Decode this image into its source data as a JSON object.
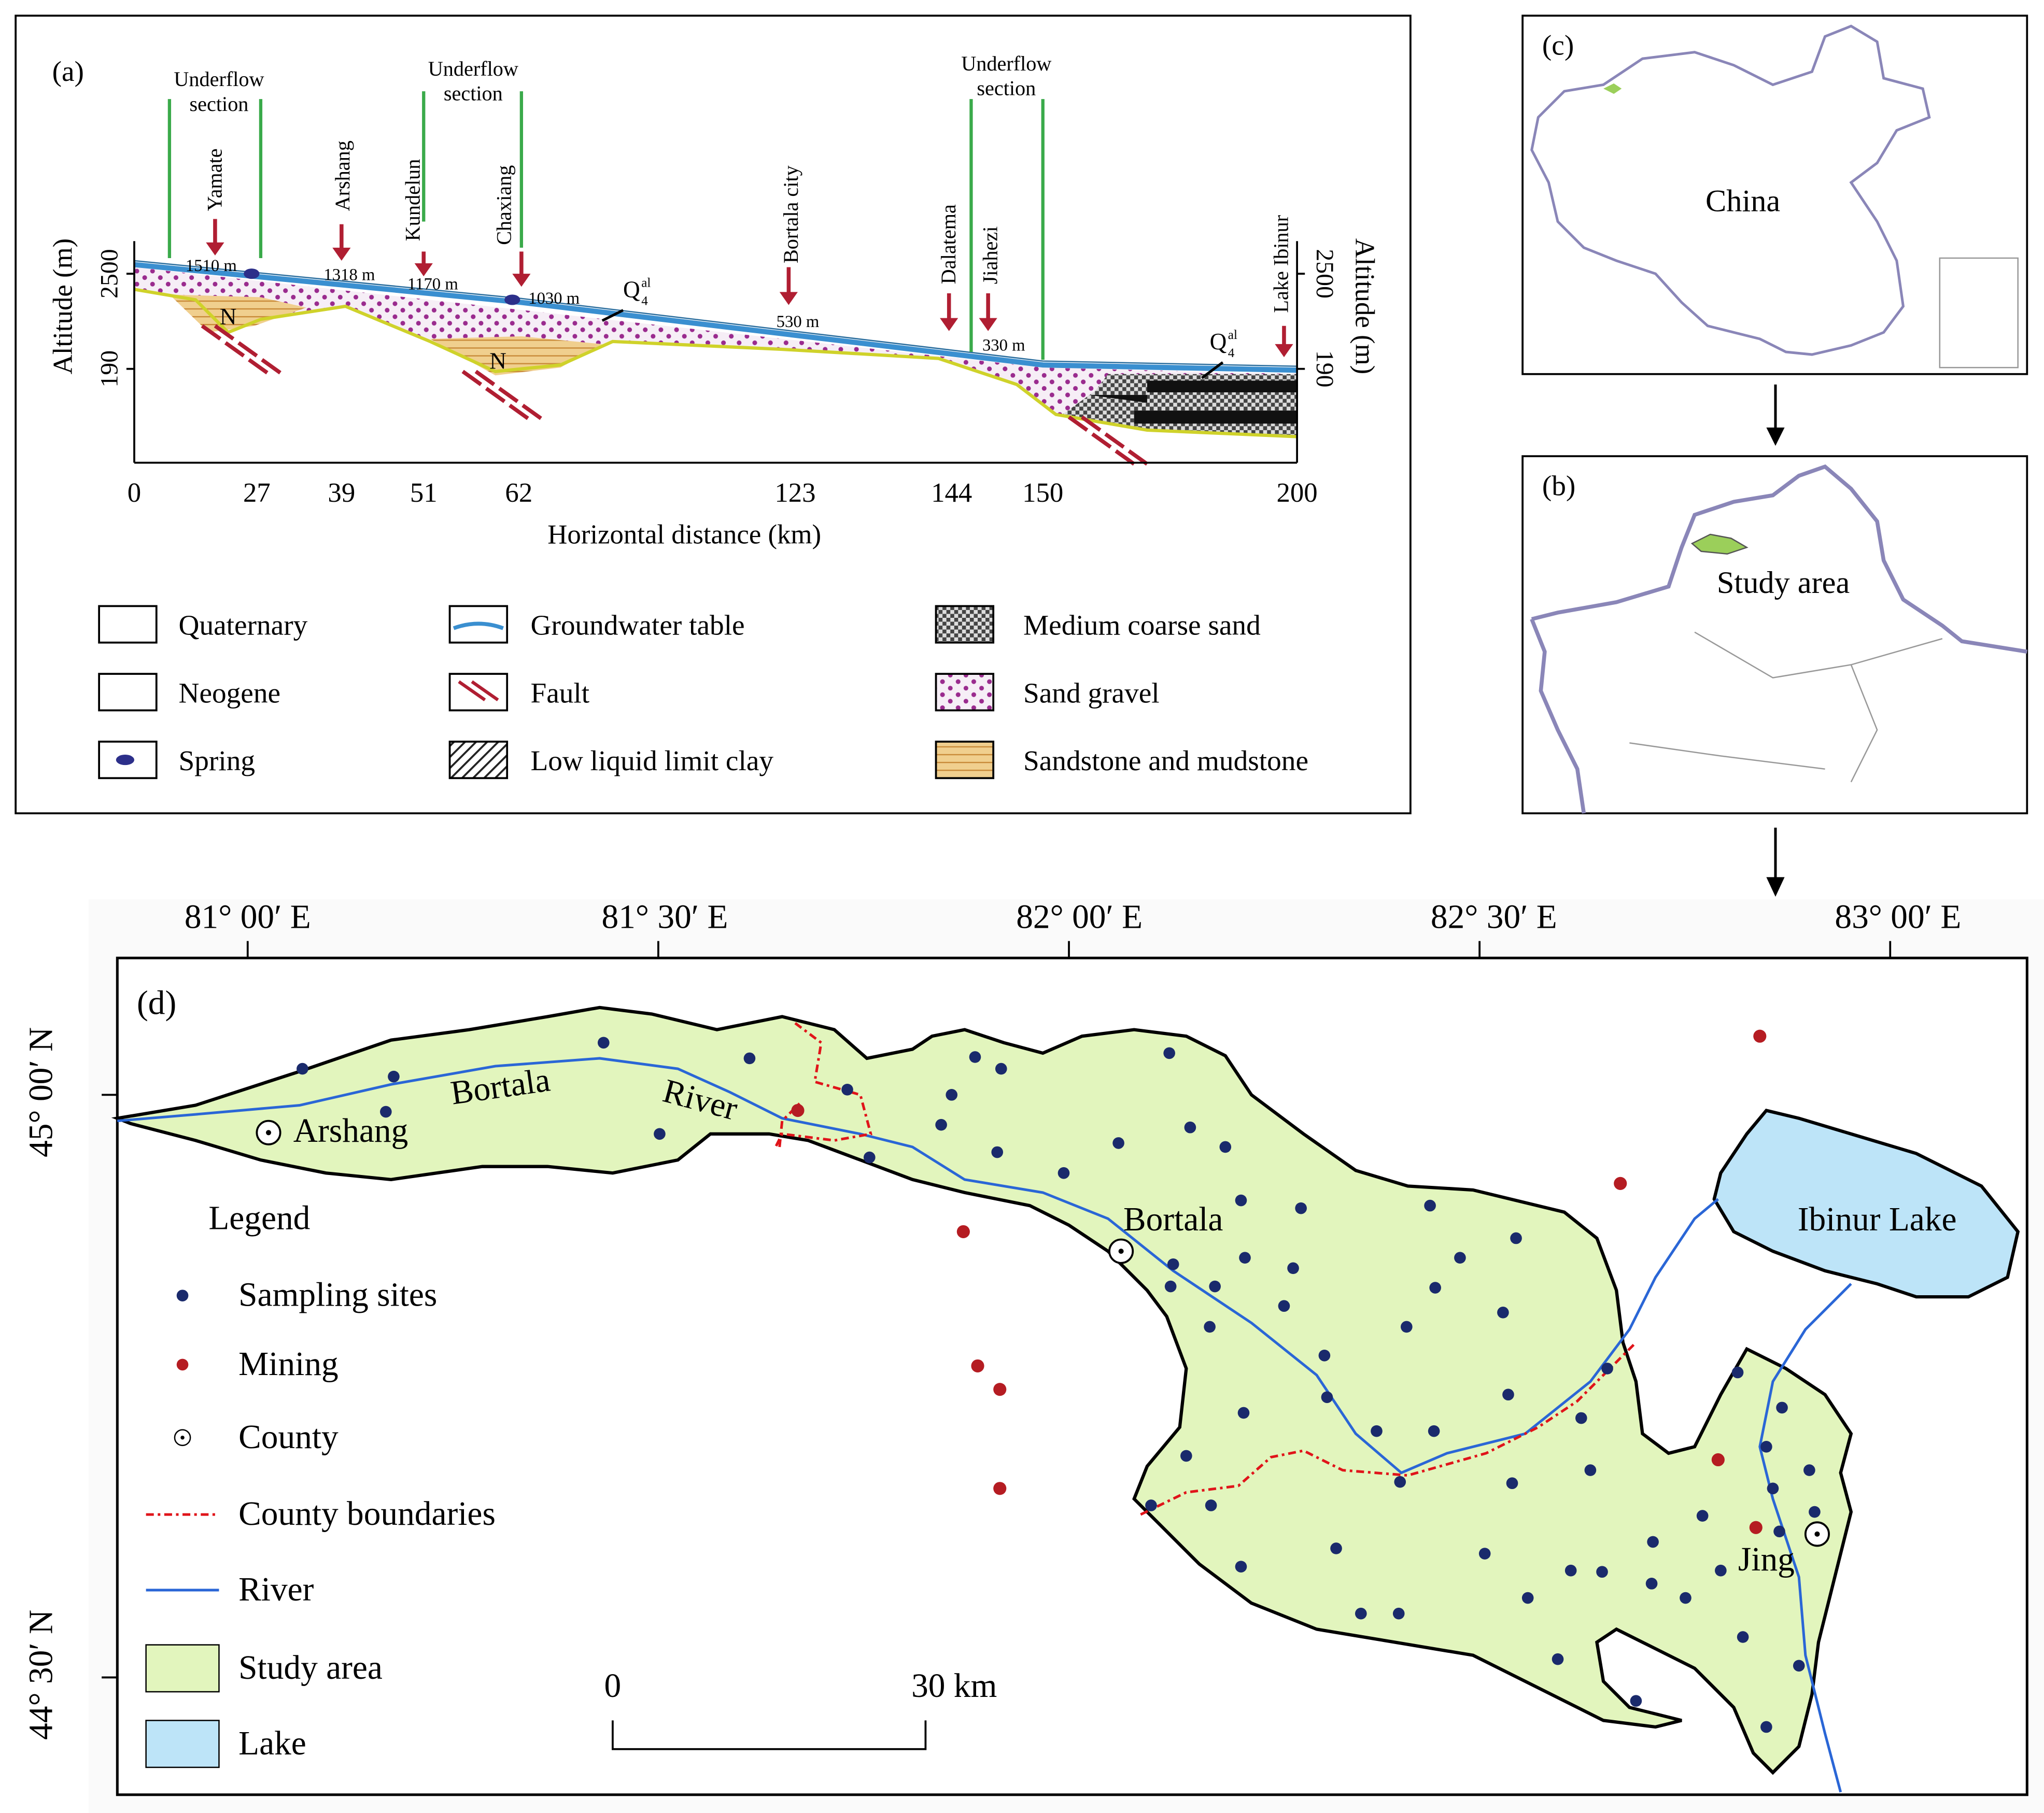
{
  "panel_a": {
    "label": "(a)",
    "sections": [
      [
        "Underflow",
        "section"
      ],
      [
        "Underflow",
        "section"
      ],
      [
        "Underflow",
        "section"
      ]
    ],
    "places": [
      "Yamate",
      "Arshang",
      "Kundelun",
      "Chaxiang",
      "Bortala city",
      "Dalatema",
      "Jiahezi",
      "Lake Ibinur"
    ],
    "elevations": [
      "1510 m",
      "1318 m",
      "1170 m",
      "1030 m",
      "530 m",
      "330 m"
    ],
    "quaternary_symbol": {
      "base": "Q",
      "sub": "4",
      "sup": "al"
    },
    "neogene_symbol": "N",
    "y_axis_label": "Altitude (m)",
    "y_ticks": [
      "2500",
      "190"
    ],
    "x_ticks": [
      "0",
      "27",
      "39",
      "51",
      "62",
      "123",
      "144",
      "150",
      "200"
    ],
    "x_axis_label": "Horizontal distance (km)",
    "legend": [
      "Quaternary",
      "Neogene",
      "Spring",
      "Groundwater table",
      "Fault",
      "Low liquid limit clay",
      "Medium coarse sand",
      "Sand gravel",
      "Sandstone and mudstone"
    ]
  },
  "panel_c": {
    "label": "(c)",
    "country": "China"
  },
  "panel_b": {
    "label": "(b)",
    "region": "Study area"
  },
  "panel_d": {
    "label": "(d)",
    "longitudes": [
      "81° 00′ E",
      "81° 30′ E",
      "82° 00′ E",
      "82° 30′ E",
      "83° 00′ E"
    ],
    "latitudes": [
      "45° 00′ N",
      "44° 30′ N"
    ],
    "places": {
      "arshang": "Arshang",
      "river_1": "Bortala",
      "river_2": "River",
      "bortala": "Bortala",
      "lake": "Ibinur Lake",
      "jing": "Jing"
    },
    "legend_title": "Legend",
    "legend": [
      "Sampling sites",
      "Mining",
      "County",
      "County boundaries",
      "River",
      "Study area",
      "Lake"
    ],
    "scale": [
      "0",
      "30 km"
    ]
  }
}
